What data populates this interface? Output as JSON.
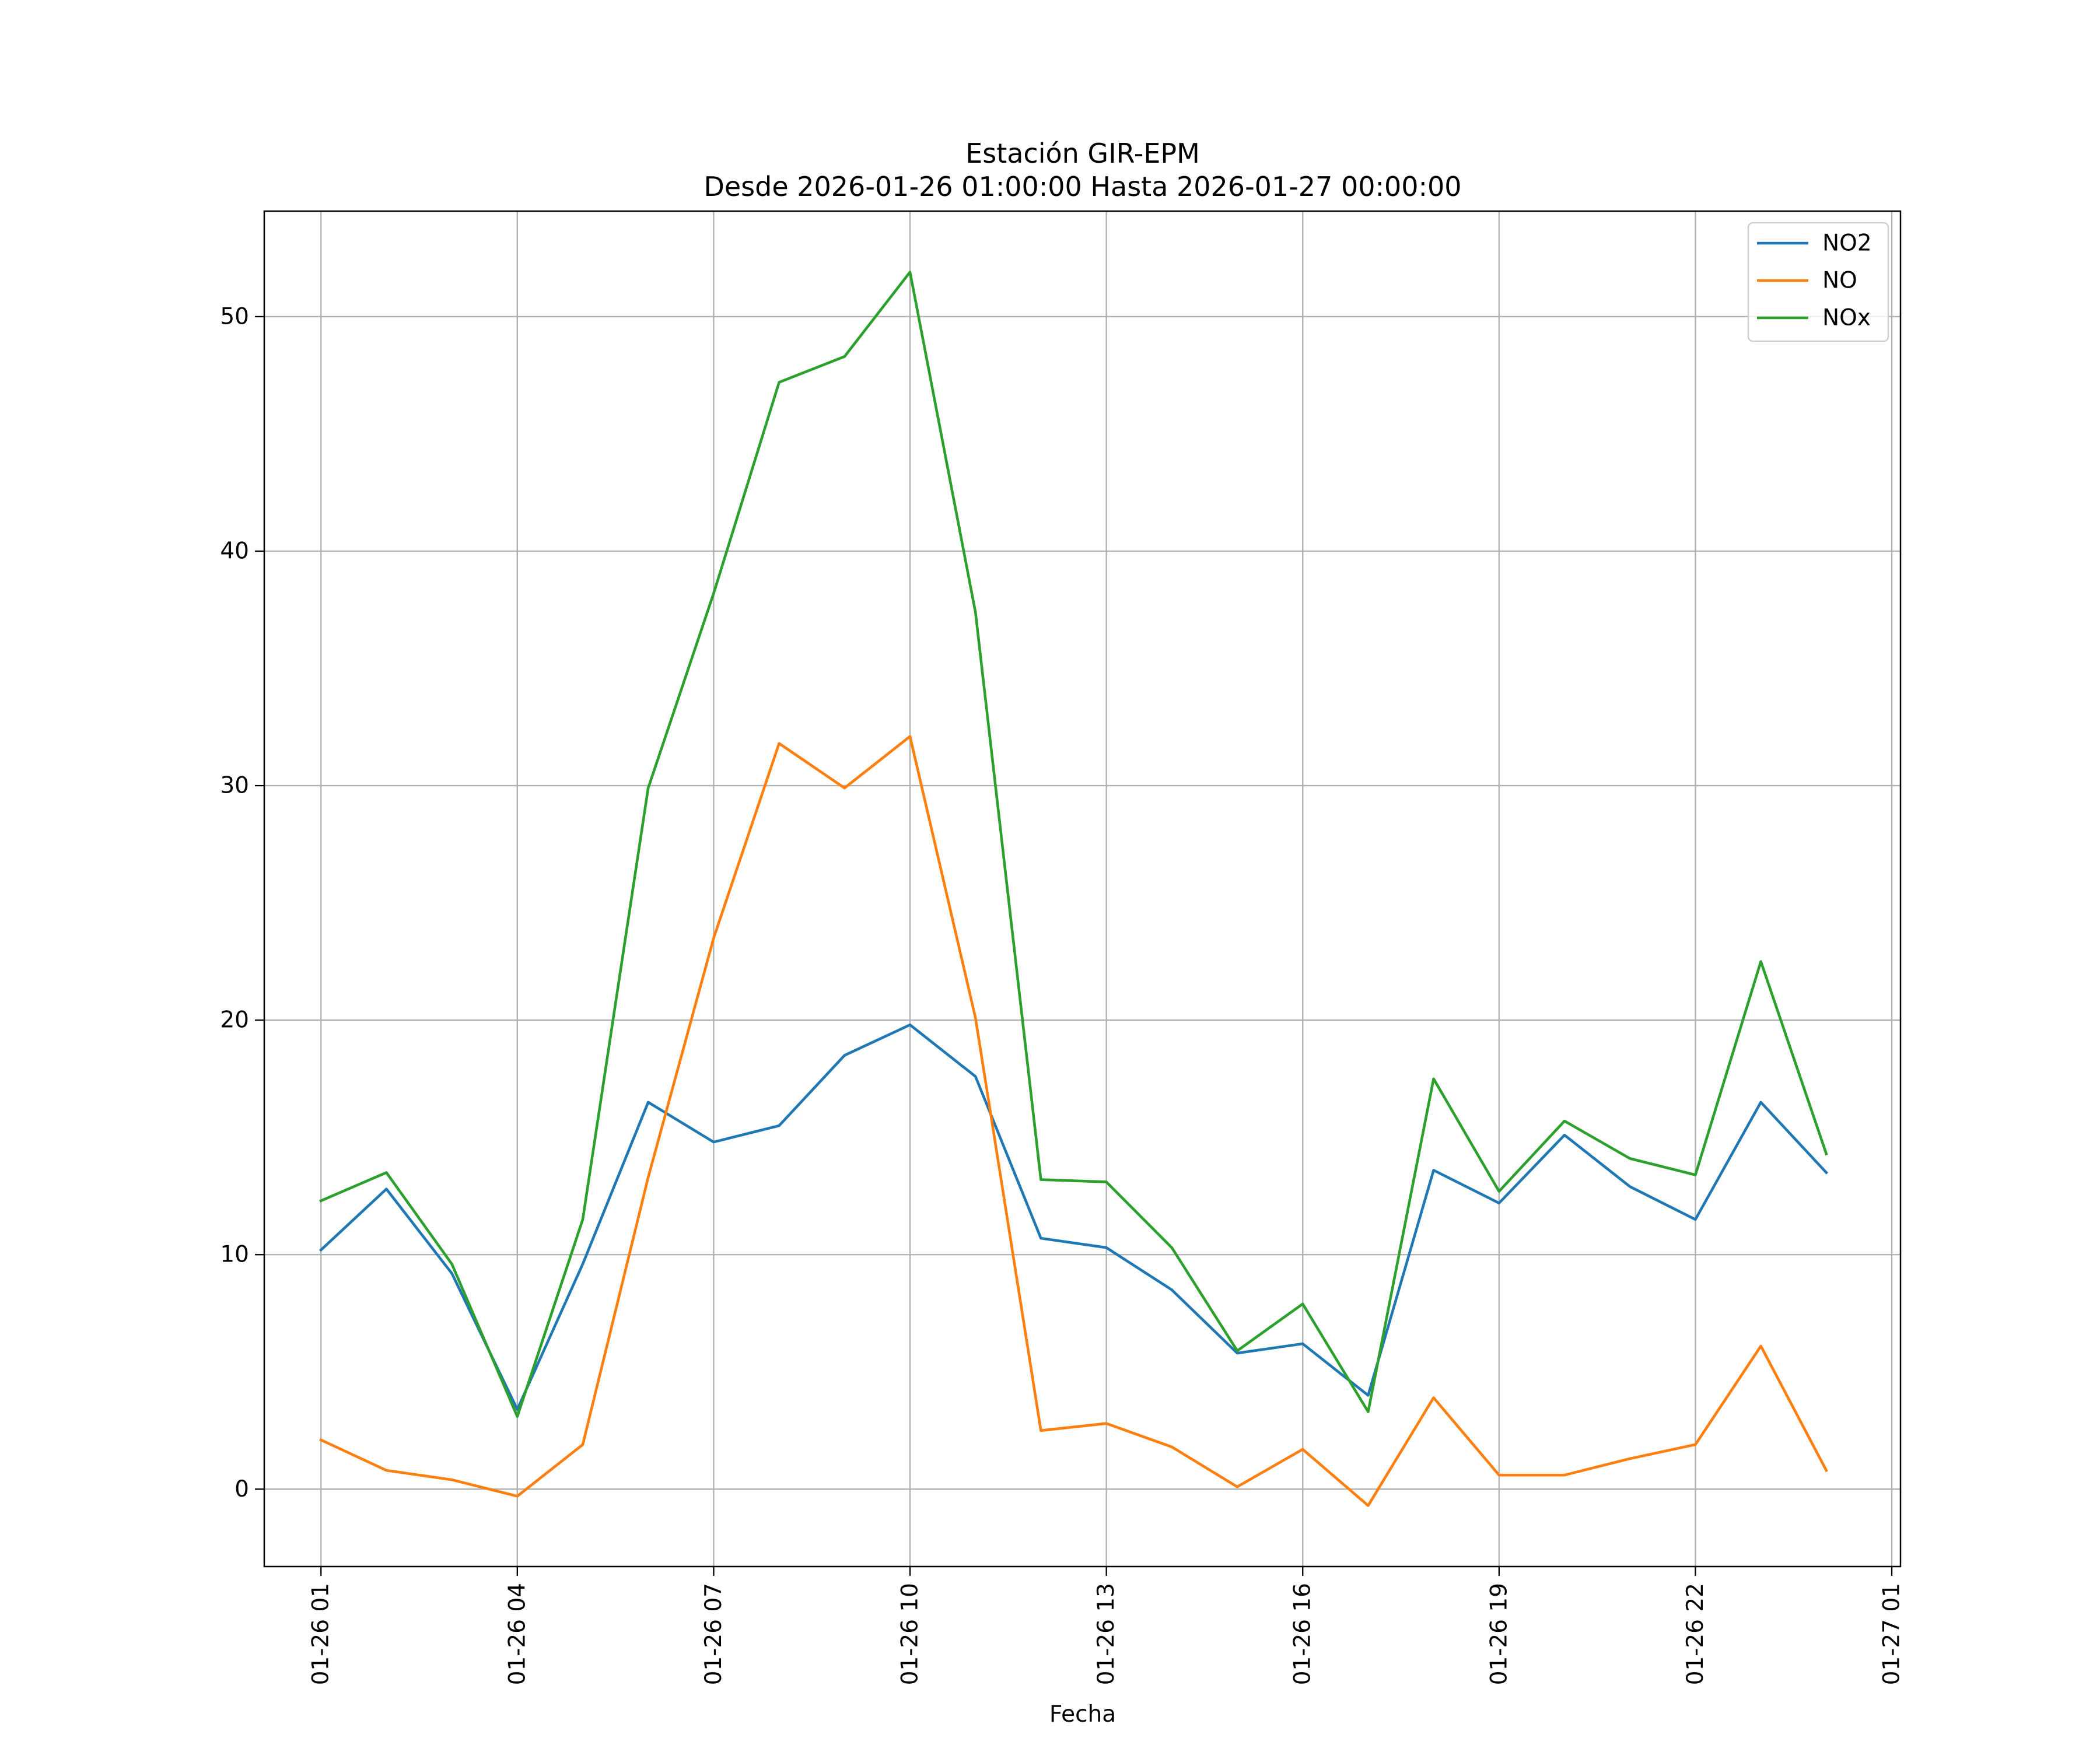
{
  "chart_data": {
    "type": "line",
    "title": "Estación GIR-EPM",
    "subtitle": "Desde 2026-01-26 01:00:00 Hasta 2026-01-27 00:00:00",
    "xlabel": "Fecha",
    "ylabel": "",
    "x": [
      "01-26 01",
      "01-26 02",
      "01-26 03",
      "01-26 04",
      "01-26 05",
      "01-26 06",
      "01-26 07",
      "01-26 08",
      "01-26 09",
      "01-26 10",
      "01-26 11",
      "01-26 12",
      "01-26 13",
      "01-26 14",
      "01-26 15",
      "01-26 16",
      "01-26 17",
      "01-26 18",
      "01-26 19",
      "01-26 20",
      "01-26 21",
      "01-26 22",
      "01-26 23",
      "01-27 00"
    ],
    "x_ticks": [
      "01-26 01",
      "01-26 04",
      "01-26 07",
      "01-26 10",
      "01-26 13",
      "01-26 16",
      "01-26 19",
      "01-26 22",
      "01-27 01"
    ],
    "xlim": [
      "01-26 00:08",
      "01-27 01:08"
    ],
    "y_ticks": [
      0,
      10,
      20,
      30,
      40,
      50
    ],
    "ylim": [
      -3.3,
      54.5
    ],
    "grid": true,
    "legend_position": "top-right",
    "series": [
      {
        "name": "NO2",
        "color": "#1f77b4",
        "values": [
          10.2,
          12.8,
          9.2,
          3.4,
          9.6,
          16.5,
          14.8,
          15.5,
          18.5,
          19.8,
          17.6,
          10.7,
          10.3,
          8.5,
          5.8,
          6.2,
          4.0,
          13.6,
          12.2,
          15.1,
          12.9,
          11.5,
          16.5,
          13.5
        ]
      },
      {
        "name": "NO",
        "color": "#ff7f0e",
        "values": [
          2.1,
          0.8,
          0.4,
          -0.3,
          1.9,
          13.3,
          23.5,
          31.8,
          29.9,
          32.1,
          20.1,
          2.5,
          2.8,
          1.8,
          0.1,
          1.7,
          -0.7,
          3.9,
          0.6,
          0.6,
          1.3,
          1.9,
          6.1,
          0.8
        ]
      },
      {
        "name": "NOx",
        "color": "#2ca02c",
        "values": [
          12.3,
          13.5,
          9.6,
          3.1,
          11.5,
          29.9,
          38.2,
          47.2,
          48.3,
          51.9,
          37.4,
          13.2,
          13.1,
          10.3,
          5.9,
          7.9,
          3.3,
          17.5,
          12.7,
          15.7,
          14.1,
          13.4,
          22.5,
          14.3
        ]
      }
    ]
  }
}
